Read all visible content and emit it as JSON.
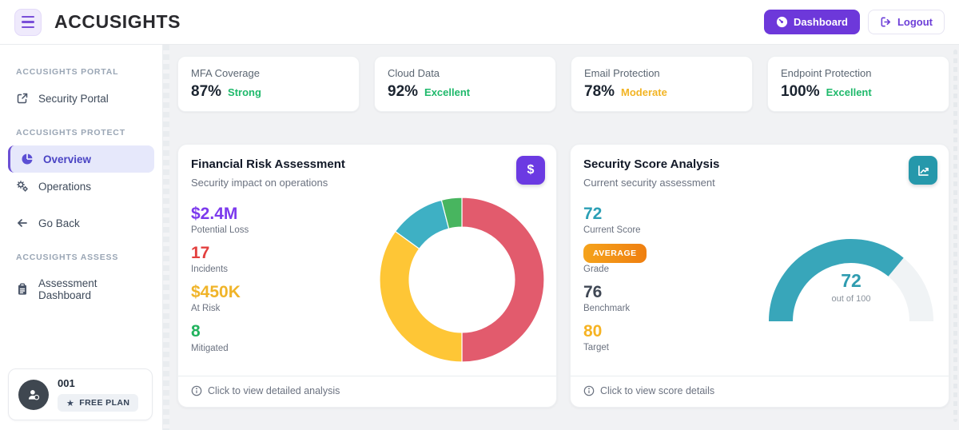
{
  "header": {
    "logo": "ACCUSIGHTS",
    "dashboard_button": "Dashboard",
    "logout_button": "Logout"
  },
  "sidebar": {
    "sections": [
      {
        "title": "ACCUSIGHTS PORTAL",
        "items": [
          {
            "label": "Security Portal",
            "icon": "external-link-icon"
          }
        ]
      },
      {
        "title": "ACCUSIGHTS PROTECT",
        "items": [
          {
            "label": "Overview",
            "icon": "pie-chart-icon",
            "active": true
          },
          {
            "label": "Operations",
            "icon": "gears-icon"
          },
          {
            "label": "Go Back",
            "icon": "arrow-left-icon"
          }
        ]
      },
      {
        "title": "ACCUSIGHTS ASSESS",
        "items": [
          {
            "label": "Assessment Dashboard",
            "icon": "clipboard-icon"
          }
        ]
      }
    ],
    "user": {
      "name": "001",
      "plan": "FREE PLAN"
    }
  },
  "stat_cards": [
    {
      "label": "MFA Coverage",
      "value": "87%",
      "status": "Strong",
      "status_color": "#1fb96b"
    },
    {
      "label": "Cloud Data",
      "value": "92%",
      "status": "Excellent",
      "status_color": "#1fb96b"
    },
    {
      "label": "Email Protection",
      "value": "78%",
      "status": "Moderate",
      "status_color": "#f2b424"
    },
    {
      "label": "Endpoint Protection",
      "value": "100%",
      "status": "Excellent",
      "status_color": "#1fb96b"
    }
  ],
  "financial_card": {
    "title": "Financial Risk Assessment",
    "subtitle": "Security impact on operations",
    "stats": [
      {
        "value": "$2.4M",
        "label": "Potential Loss",
        "color": "#7c3aed"
      },
      {
        "value": "17",
        "label": "Incidents",
        "color": "#e3403f"
      },
      {
        "value": "$450K",
        "label": "At Risk",
        "color": "#f0b429"
      },
      {
        "value": "8",
        "label": "Mitigated",
        "color": "#22b35e"
      }
    ],
    "footer": "Click to view detailed analysis"
  },
  "score_card": {
    "title": "Security Score Analysis",
    "subtitle": "Current security assessment",
    "stats": [
      {
        "value": "72",
        "label": "Current Score",
        "color": "#2b9fb5"
      },
      {
        "value": "AVERAGE",
        "label": "Grade"
      },
      {
        "value": "76",
        "label": "Benchmark",
        "color": "#3f4754"
      },
      {
        "value": "80",
        "label": "Target",
        "color": "#f6b323"
      }
    ],
    "footer": "Click to view score details"
  },
  "chart_data": [
    {
      "type": "pie",
      "name": "financial-risk-donut",
      "donut": true,
      "start_angle_deg_from_top": 0,
      "direction": "clockwise",
      "segments": [
        {
          "color": "#e25b6d",
          "percent": 50
        },
        {
          "color": "#fec636",
          "percent": 35
        },
        {
          "color": "#3eb0c4",
          "percent": 11
        },
        {
          "color": "#48b55f",
          "percent": 4
        }
      ],
      "inner_radius_ratio": 0.64,
      "legend": "none",
      "labels": "none"
    },
    {
      "type": "gauge",
      "name": "security-score-gauge",
      "value": 72,
      "max": 100,
      "color": "#38a6ba",
      "track_color": "#f0f3f5",
      "center_label": "72",
      "center_sublabel": "out of 100"
    }
  ]
}
